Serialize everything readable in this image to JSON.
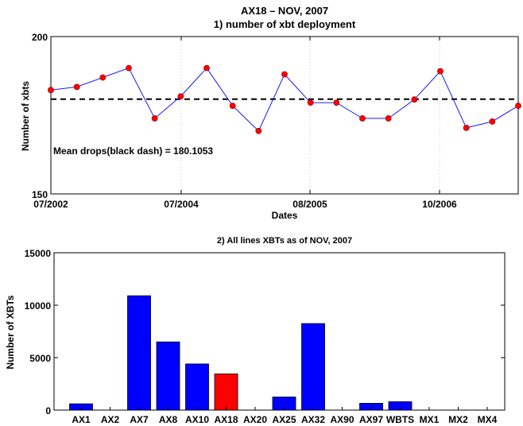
{
  "chart_data": [
    {
      "type": "line",
      "title": "AX18 – NOV, 2007",
      "subtitle": "1) number of xbt deployment",
      "xlabel": "Dates",
      "ylabel": "Number of xbts",
      "x_tick_labels": [
        "07/2002",
        "07/2004",
        "08/2005",
        "10/2006"
      ],
      "y_tick_labels": [
        "150",
        "200"
      ],
      "ylim": [
        150,
        200
      ],
      "grid": "vertical dotted lines at date ticks",
      "series": [
        {
          "color": "#0000ff",
          "marker_color": "#ff0000",
          "values": [
            183,
            184,
            187,
            190,
            174,
            181,
            190,
            178,
            170,
            188,
            179,
            179,
            174,
            174,
            180,
            189,
            171,
            173,
            178
          ]
        }
      ],
      "mean": 180.1053,
      "mean_line_color": "#000000",
      "annotation": "Mean drops(black dash) = 180.1053"
    },
    {
      "type": "bar",
      "title": "2) All lines XBTs as of NOV, 2007",
      "xlabel": "",
      "ylabel": "Number of XBTs",
      "ylim": [
        0,
        15000
      ],
      "y_tick_labels": [
        "0",
        "5000",
        "10000",
        "15000"
      ],
      "categories": [
        "AX1",
        "AX2",
        "AX7",
        "AX8",
        "AX10",
        "AX18",
        "AX20",
        "AX25",
        "AX32",
        "AX90",
        "AX97",
        "WBTS",
        "MX1",
        "MX2",
        "MX4"
      ],
      "values": [
        600,
        0,
        10900,
        6500,
        4400,
        3450,
        0,
        1250,
        8250,
        0,
        650,
        800,
        0,
        0,
        0
      ],
      "bar_color": "#0000ff",
      "highlight_category": "AX18",
      "highlight_color": "#ff0000"
    }
  ]
}
